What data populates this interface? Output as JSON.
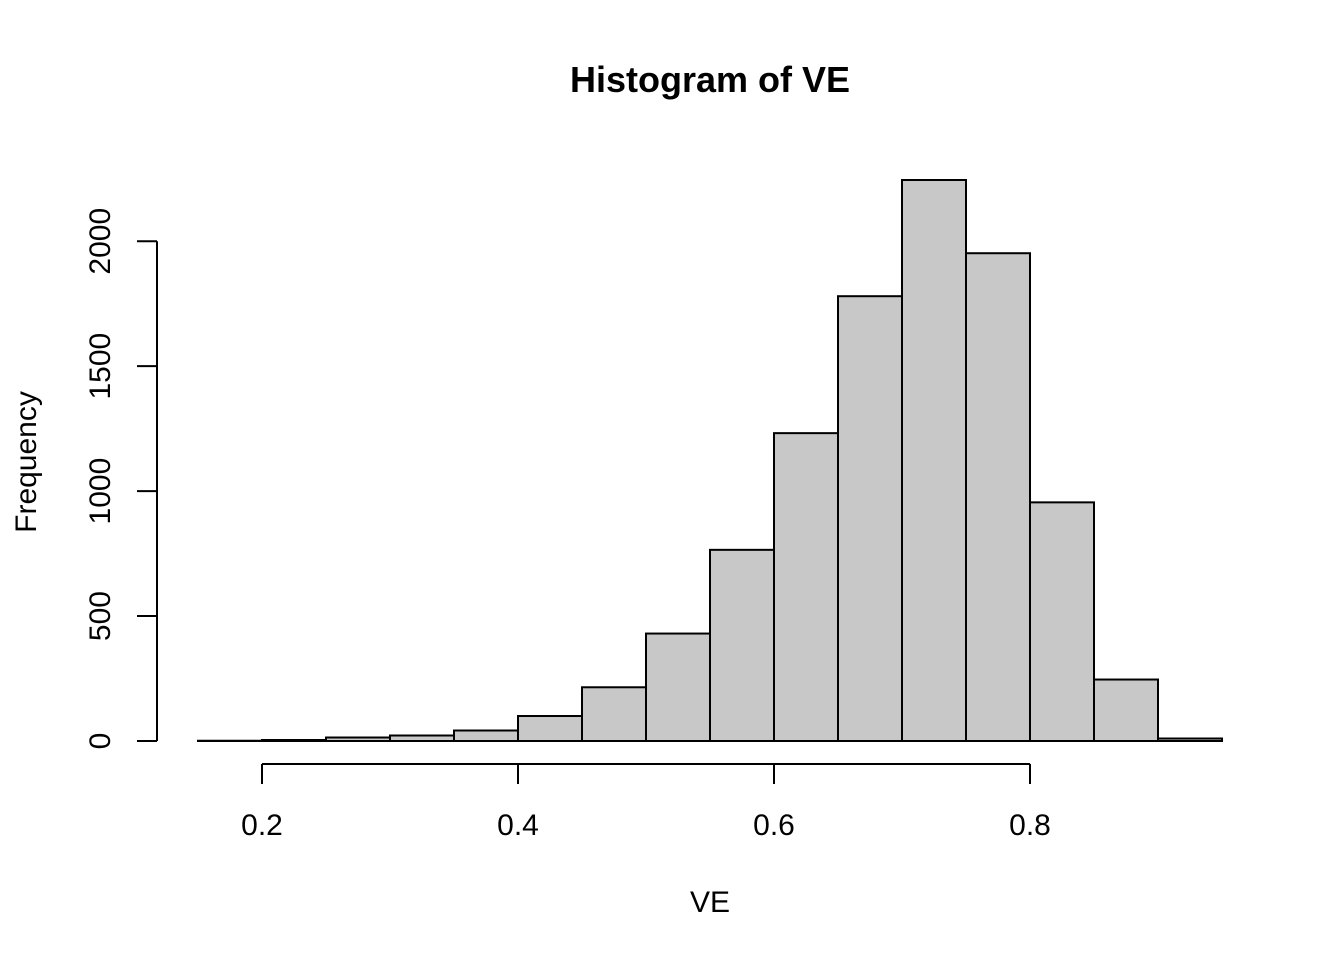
{
  "chart_data": {
    "type": "bar",
    "title": "Histogram of VE",
    "xlabel": "VE",
    "ylabel": "Frequency",
    "bins": [
      {
        "start": 0.15,
        "end": 0.2,
        "count": 1
      },
      {
        "start": 0.2,
        "end": 0.25,
        "count": 4
      },
      {
        "start": 0.25,
        "end": 0.3,
        "count": 14
      },
      {
        "start": 0.3,
        "end": 0.35,
        "count": 22
      },
      {
        "start": 0.35,
        "end": 0.4,
        "count": 42
      },
      {
        "start": 0.4,
        "end": 0.45,
        "count": 100
      },
      {
        "start": 0.45,
        "end": 0.5,
        "count": 215
      },
      {
        "start": 0.5,
        "end": 0.55,
        "count": 430
      },
      {
        "start": 0.55,
        "end": 0.6,
        "count": 765
      },
      {
        "start": 0.6,
        "end": 0.65,
        "count": 1232
      },
      {
        "start": 0.65,
        "end": 0.7,
        "count": 1780
      },
      {
        "start": 0.7,
        "end": 0.75,
        "count": 2245
      },
      {
        "start": 0.75,
        "end": 0.8,
        "count": 1952
      },
      {
        "start": 0.8,
        "end": 0.85,
        "count": 955
      },
      {
        "start": 0.85,
        "end": 0.9,
        "count": 246
      },
      {
        "start": 0.9,
        "end": 0.95,
        "count": 10
      }
    ],
    "xlim": [
      0.15,
      0.95
    ],
    "ylim": [
      0,
      2245
    ],
    "x_ticks": [
      0.2,
      0.4,
      0.6,
      0.8
    ],
    "x_tick_labels": [
      "0.2",
      "0.4",
      "0.6",
      "0.8"
    ],
    "y_ticks": [
      0,
      500,
      1000,
      1500,
      2000
    ],
    "y_tick_labels": [
      "0",
      "500",
      "1000",
      "1500",
      "2000"
    ],
    "bar_fill": "#c8c8c8",
    "bar_edge": "#000000",
    "grid": false,
    "legend": "none"
  }
}
